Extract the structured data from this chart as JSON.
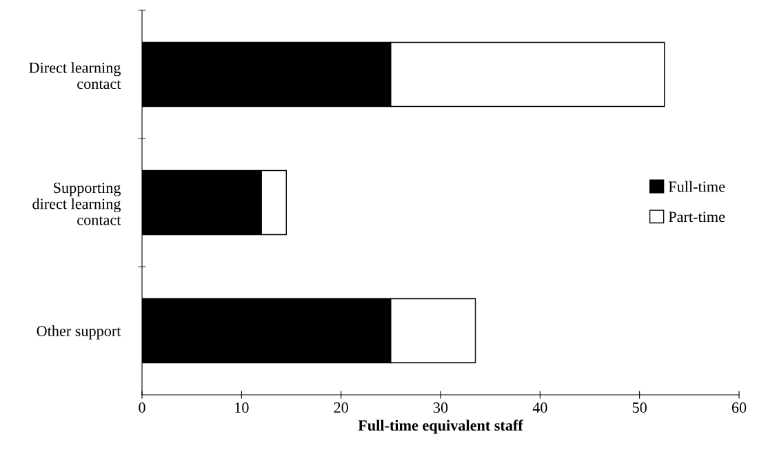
{
  "chart_data": {
    "type": "bar",
    "orientation": "horizontal",
    "stacked": true,
    "categories": [
      "Direct learning\ncontact",
      "Supporting\ndirect learning\ncontact",
      "Other support"
    ],
    "series": [
      {
        "name": "Full-time",
        "color": "#000000",
        "values": [
          25,
          12,
          25
        ]
      },
      {
        "name": "Part-time",
        "color": "#ffffff",
        "values": [
          27.5,
          2.5,
          8.5
        ]
      }
    ],
    "xlabel": "Full-time equivalent staff",
    "xlim": [
      0,
      60
    ],
    "xticks": [
      0,
      10,
      20,
      30,
      40,
      50,
      60
    ],
    "grid": false,
    "legend": "right"
  }
}
